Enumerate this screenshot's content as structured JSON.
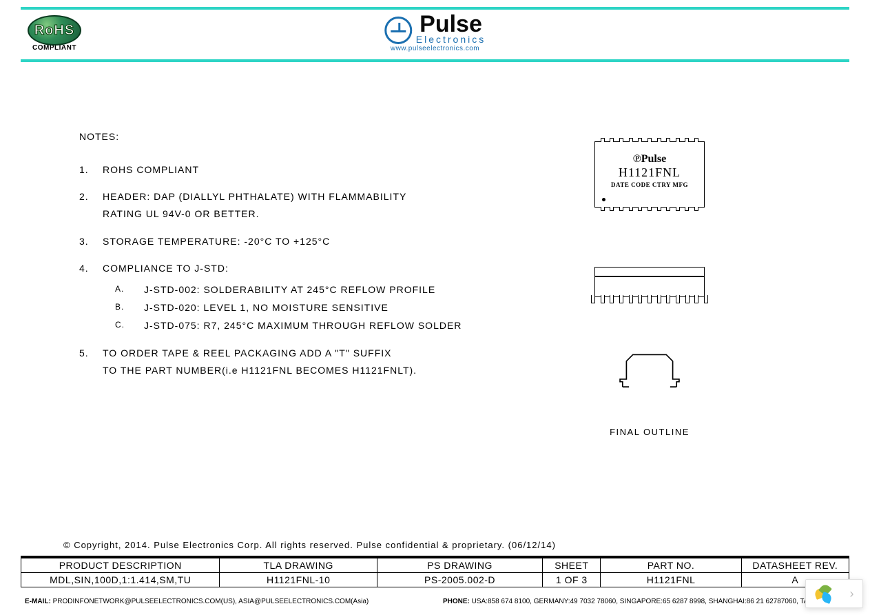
{
  "header": {
    "rohs_text": "RoHS",
    "rohs_sub": "COMPLIANT",
    "pulse_name": "Pulse",
    "pulse_sub": "Electronics",
    "pulse_url": "www.pulseelectronics.com",
    "bar_color": "#2dd4c5"
  },
  "notes": {
    "title": "NOTES:",
    "items": [
      {
        "num": "1.",
        "lines": [
          "ROHS COMPLIANT"
        ]
      },
      {
        "num": "2.",
        "lines": [
          "HEADER: DAP (DIALLYL PHTHALATE) WITH FLAMMABILITY",
          "RATING UL 94V-0 OR BETTER."
        ]
      },
      {
        "num": "3.",
        "lines": [
          "STORAGE TEMPERATURE: -20°C TO +125°C"
        ]
      },
      {
        "num": "4.",
        "lines": [
          "COMPLIANCE TO J-STD:"
        ],
        "subs": [
          {
            "letter": "A.",
            "text": "J-STD-002: SOLDERABILITY AT 245°C REFLOW PROFILE"
          },
          {
            "letter": "B.",
            "text": "J-STD-020: LEVEL 1, NO MOISTURE SENSITIVE"
          },
          {
            "letter": "C.",
            "text": "J-STD-075: R7, 245°C MAXIMUM THROUGH REFLOW SOLDER"
          }
        ]
      },
      {
        "num": "5.",
        "lines": [
          "TO ORDER TAPE & REEL PACKAGING ADD A \"T\" SUFFIX",
          "TO THE PART NUMBER(i.e H1121FNL BECOMES H1121FNLT)."
        ]
      }
    ]
  },
  "component": {
    "brand": "Pulse",
    "part": "H1121FNL",
    "date_line": "DATE CODE CTRY MFG",
    "final_label": "FINAL OUTLINE",
    "pin_count_top": 11,
    "pin_count_side": 13,
    "outline_stroke": "#000000",
    "outline_width": 1.5
  },
  "copyright": "© Copyright, 2014. Pulse Electronics Corp. All rights reserved. Pulse confidential & proprietary. (06/12/14)",
  "table": {
    "col_widths": [
      "24%",
      "19%",
      "20%",
      "7%",
      "17%",
      "13%"
    ],
    "headers": [
      "PRODUCT DESCRIPTION",
      "TLA DRAWING",
      "PS DRAWING",
      "SHEET",
      "PART NO.",
      "DATASHEET REV."
    ],
    "row": [
      "MDL,SIN,100D,1:1.414,SM,TU",
      "H1121FNL-10",
      "PS-2005.002-D",
      "1 OF 3",
      "H1121FNL",
      "A"
    ]
  },
  "footer": {
    "email_label": "E-MAIL:",
    "email_text": "PRODINFONETWORK@PULSEELECTRONICS.COM(US), ASIA@PULSEELECTRONICS.COM(Asia)",
    "phone_label": "PHONE:",
    "phone_text": "USA:858 674 8100, GERMANY:49 7032 78060, SINGAPORE:65 6287 8998, SHANGHAI:86 21 62787060, TAIWAN:886 3"
  },
  "chat": {
    "petal_colors": [
      "#f4c430",
      "#7cb342",
      "#29b6f6"
    ],
    "arrow": "›"
  }
}
